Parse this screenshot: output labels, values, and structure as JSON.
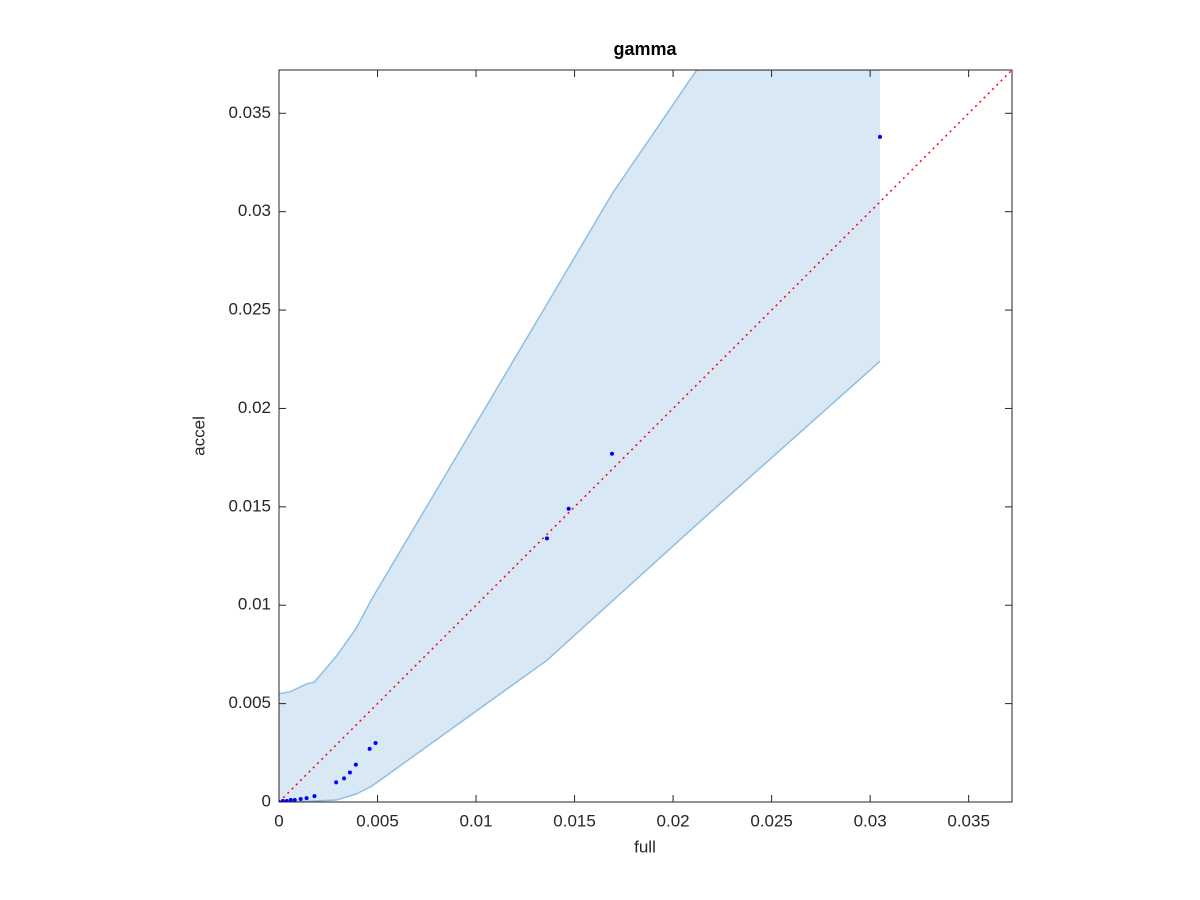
{
  "chart_data": {
    "type": "scatter",
    "title": "gamma",
    "x_label": "full",
    "y_label": "accel",
    "x": [
      0,
      0.0002,
      0.0004,
      0.0006,
      0.0008,
      0.0011,
      0.0014,
      0.0018,
      0.0029,
      0.0033,
      0.0036,
      0.0039,
      0.0046,
      0.0049,
      0.0136,
      0.0147,
      0.0169,
      0.0305
    ],
    "y": [
      0,
      5e-05,
      5e-05,
      0.0001,
      0.0001,
      0.00015,
      0.0002,
      0.0003,
      0.001,
      0.0012,
      0.0015,
      0.0019,
      0.0027,
      0.003,
      0.0134,
      0.0149,
      0.0177,
      0.0338
    ],
    "color": "#0000ff",
    "band": {
      "x": [
        0,
        0.00056,
        0.0014,
        0.0018,
        0.0029,
        0.0039,
        0.0047,
        0.0136,
        0.0169,
        0.0212,
        0.0305
      ],
      "upper": [
        0.0055,
        0.0056,
        0.006,
        0.0061,
        0.0074,
        0.0088,
        0.0103,
        0.0253,
        0.0309,
        0.0372,
        0.0372
      ],
      "lower": [
        0,
        0,
        3e-05,
        5e-05,
        0.0001,
        0.0004,
        0.0008,
        0.0072,
        0.0102,
        0.0141,
        0.0224
      ],
      "fill": "#d9e8f5",
      "edge": "#8fbfe0"
    },
    "reference_line_color": "#ff0000",
    "xlim": [
      0,
      0.0372
    ],
    "ylim": [
      0,
      0.0372
    ],
    "xticks": [
      0,
      0.005,
      0.01,
      0.015,
      0.02,
      0.025,
      0.03,
      0.035
    ],
    "yticks": [
      0,
      0.005,
      0.01,
      0.015,
      0.02,
      0.025,
      0.03,
      0.035
    ]
  }
}
